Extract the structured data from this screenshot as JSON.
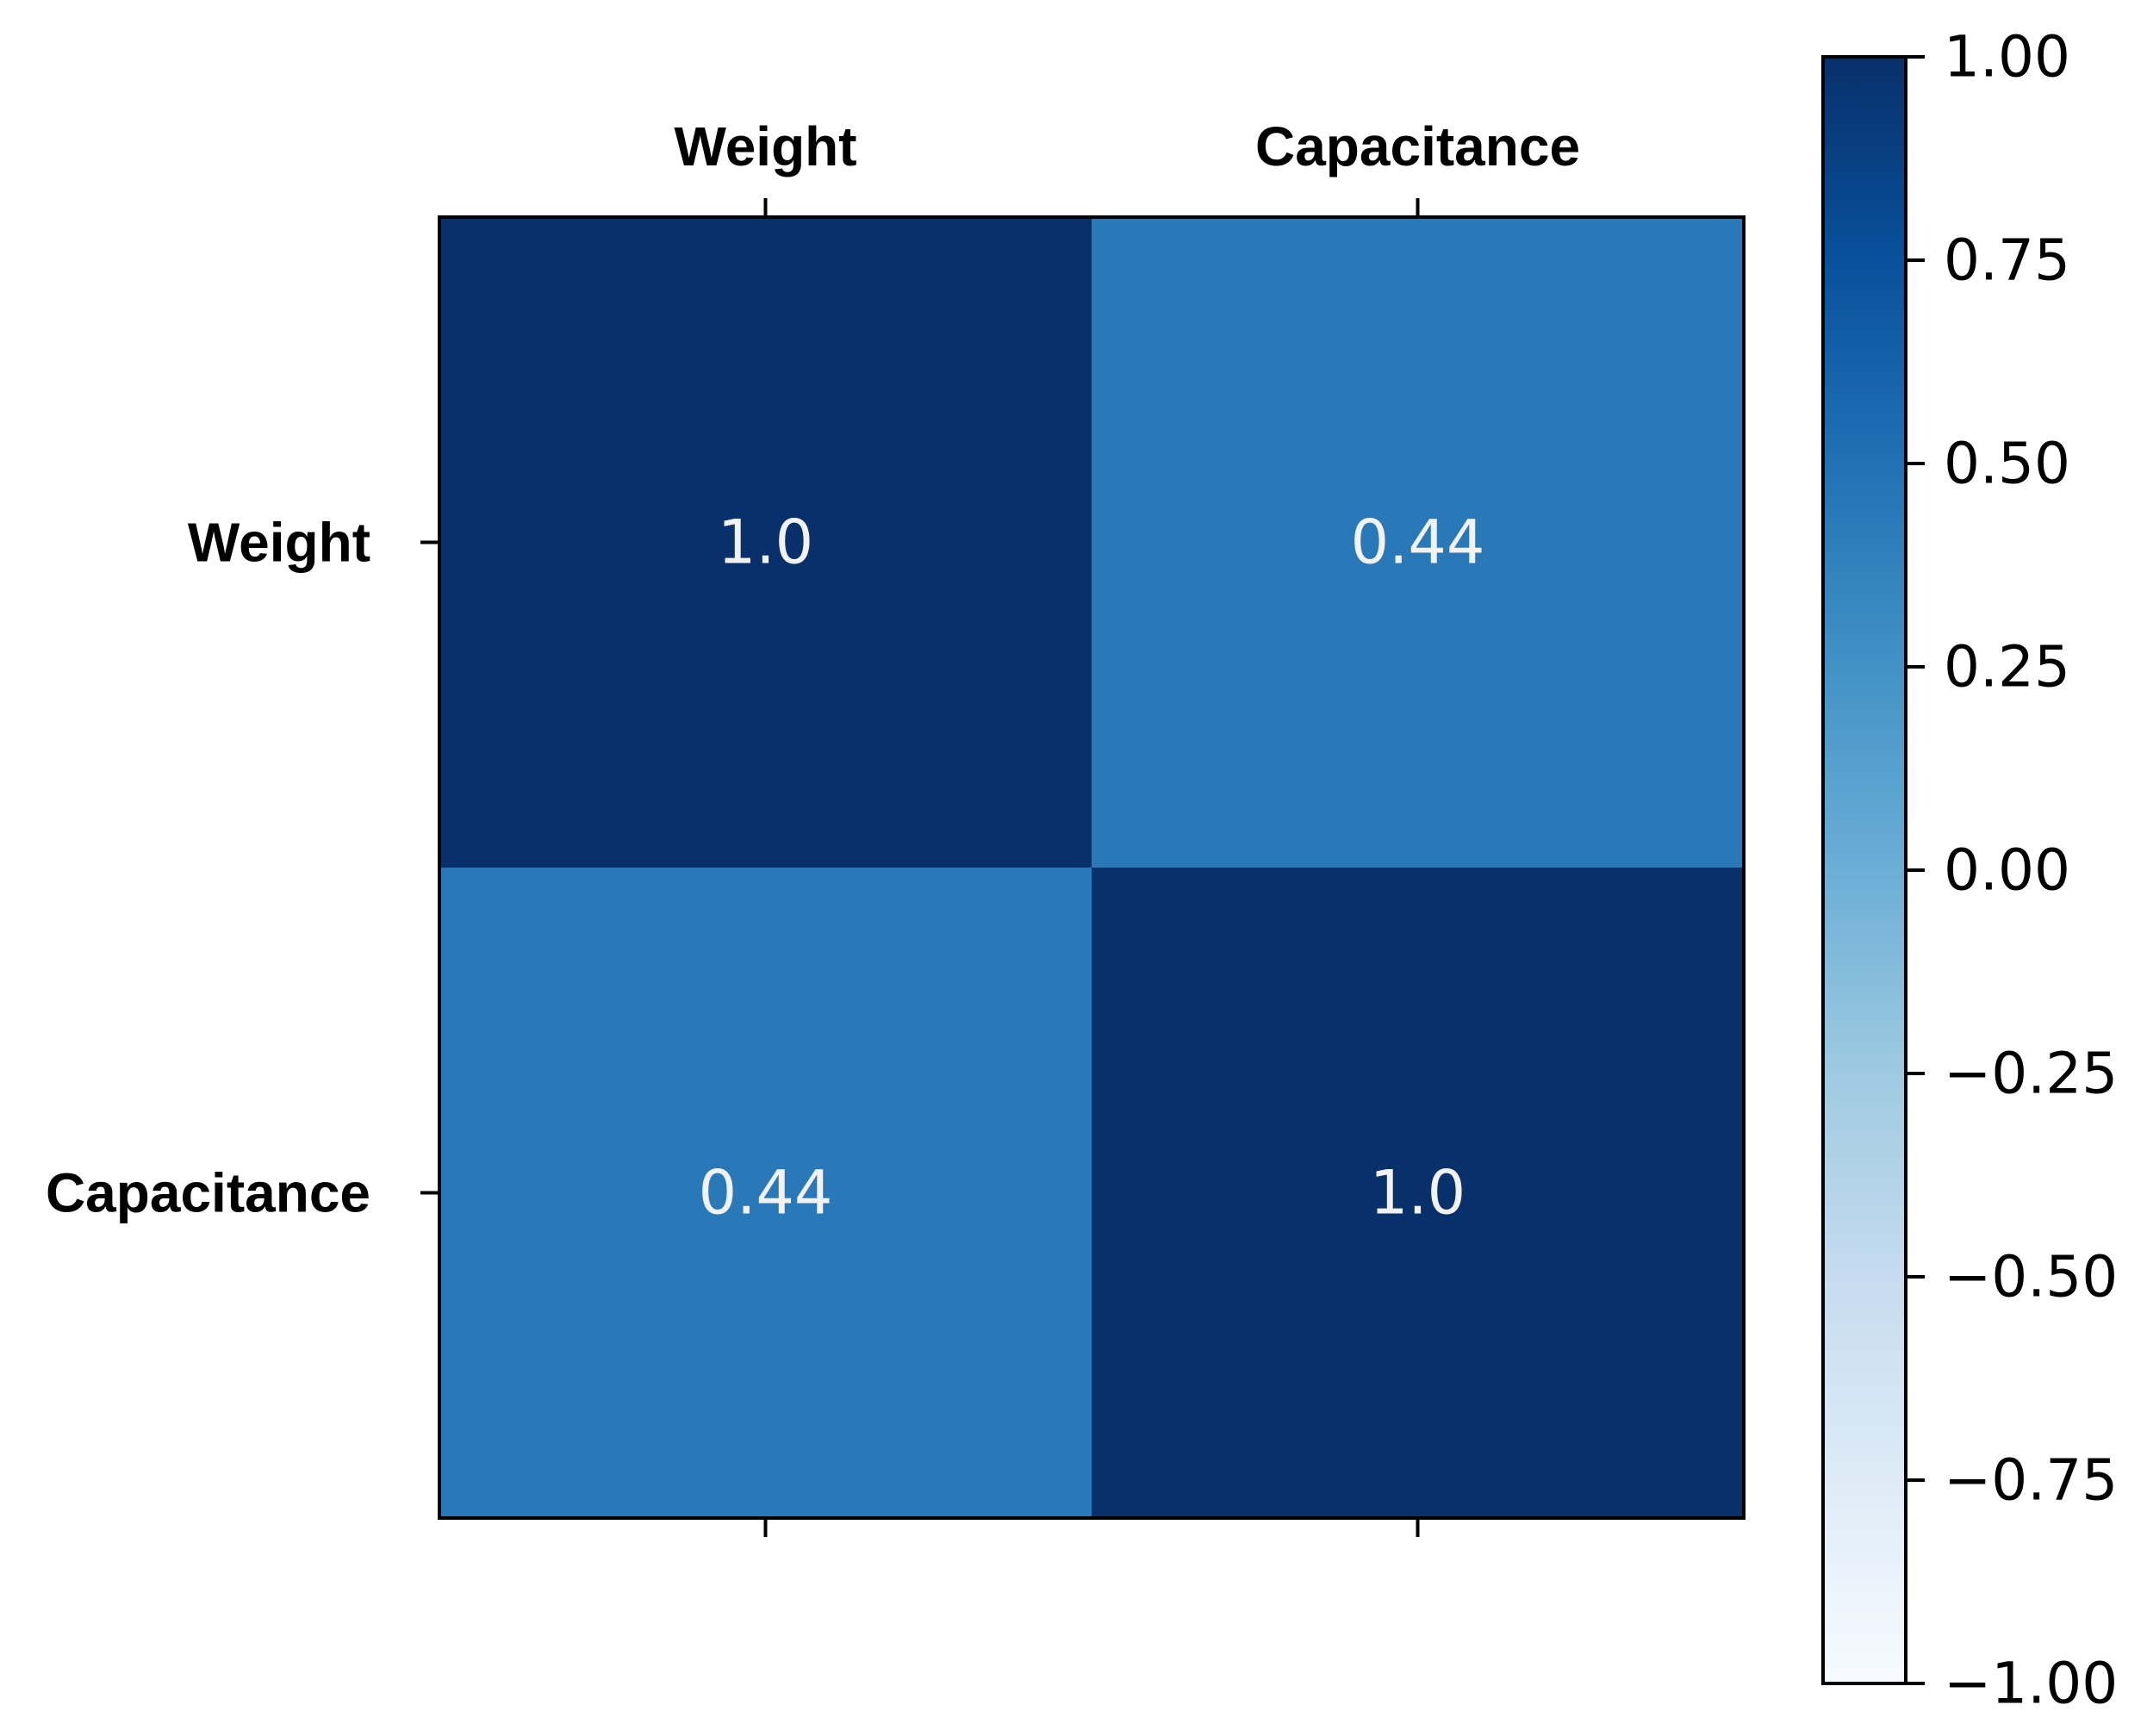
{
  "chart_data": {
    "type": "heatmap",
    "title": "",
    "x_labels": [
      "Weight",
      "Capacitance"
    ],
    "y_labels": [
      "Weight",
      "Capacitance"
    ],
    "values": [
      [
        1.0,
        0.44
      ],
      [
        0.44,
        1.0
      ]
    ],
    "cell_labels": [
      [
        "1.0",
        "0.44"
      ],
      [
        "0.44",
        "1.0"
      ]
    ],
    "colormap": "Blues",
    "colorbar": {
      "range": [
        -1.0,
        1.0
      ],
      "ticks": [
        1.0,
        0.75,
        0.5,
        0.25,
        0.0,
        -0.25,
        -0.5,
        -0.75,
        -1.0
      ],
      "tick_labels": [
        "1.00",
        "0.75",
        "0.50",
        "0.25",
        "0.00",
        "−0.25",
        "−0.50",
        "−0.75",
        "−1.00"
      ]
    },
    "colors": {
      "high": "#08306b",
      "mid": "#2b7bba",
      "low": "#f7fbff",
      "cell_text": "#f2f2f2"
    }
  }
}
